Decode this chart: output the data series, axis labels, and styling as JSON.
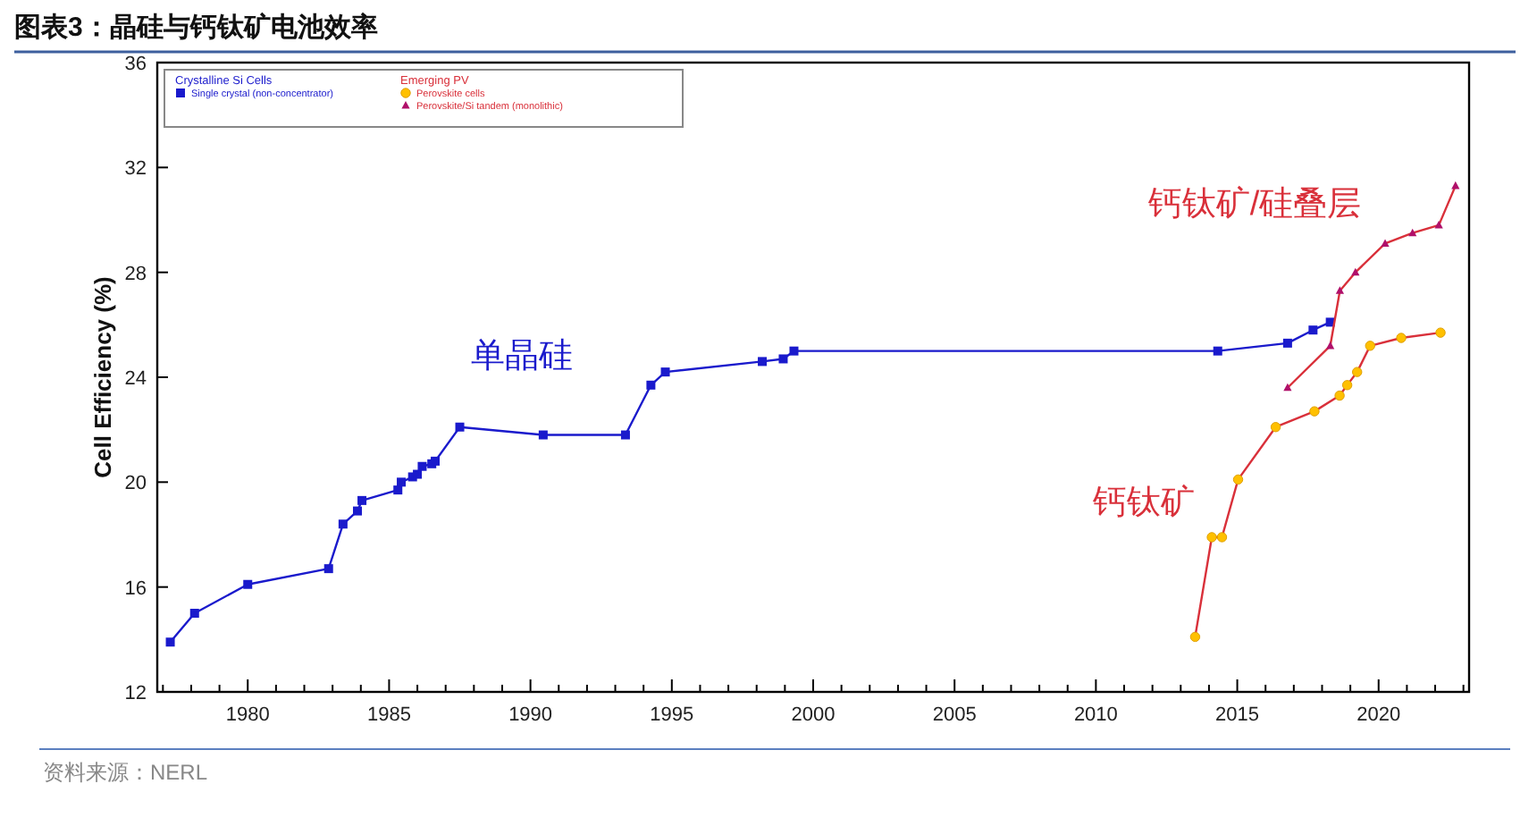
{
  "chart_data": {
    "type": "line",
    "title": "图表3：晶硅与钙钛矿电池效率",
    "ylabel": "Cell Efficiency (%)",
    "xlim": [
      1976.8,
      2023.2
    ],
    "ylim": [
      12,
      36
    ],
    "yticks": [
      12,
      16,
      20,
      24,
      28,
      32,
      36
    ],
    "xticks": [
      {
        "value": 1977,
        "label": null
      },
      {
        "value": 1978,
        "label": null
      },
      {
        "value": 1979,
        "label": null
      },
      1980,
      {
        "value": 1981,
        "label": null
      },
      {
        "value": 1982,
        "label": null
      },
      {
        "value": 1983,
        "label": null
      },
      {
        "value": 1984,
        "label": null
      },
      1985,
      {
        "value": 1986,
        "label": null
      },
      {
        "value": 1987,
        "label": null
      },
      {
        "value": 1988,
        "label": null
      },
      {
        "value": 1989,
        "label": null
      },
      1990,
      {
        "value": 1991,
        "label": null
      },
      {
        "value": 1992,
        "label": null
      },
      {
        "value": 1993,
        "label": null
      },
      {
        "value": 1994,
        "label": null
      },
      1995,
      {
        "value": 1996,
        "label": null
      },
      {
        "value": 1997,
        "label": null
      },
      {
        "value": 1998,
        "label": null
      },
      {
        "value": 1999,
        "label": null
      },
      2000,
      {
        "value": 2001,
        "label": null
      },
      {
        "value": 2002,
        "label": null
      },
      {
        "value": 2003,
        "label": null
      },
      {
        "value": 2004,
        "label": null
      },
      2005,
      {
        "value": 2006,
        "label": null
      },
      {
        "value": 2007,
        "label": null
      },
      {
        "value": 2008,
        "label": null
      },
      {
        "value": 2009,
        "label": null
      },
      2010,
      {
        "value": 2011,
        "label": null
      },
      {
        "value": 2012,
        "label": null
      },
      {
        "value": 2013,
        "label": null
      },
      {
        "value": 2014,
        "label": null
      },
      2015,
      {
        "value": 2016,
        "label": null
      },
      {
        "value": 2017,
        "label": null
      },
      {
        "value": 2018,
        "label": null
      },
      {
        "value": 2019,
        "label": null
      },
      2020,
      {
        "value": 2021,
        "label": null
      },
      {
        "value": 2022,
        "label": null
      },
      {
        "value": 2023,
        "label": null
      }
    ],
    "grid": false,
    "legend": "top left",
    "series": [
      {
        "name": "Single crystal (non-concentrator)",
        "color": "#1a1acc",
        "marker": "square",
        "x": [
          1977.26,
          1978.12,
          1980.0,
          1982.86,
          1983.37,
          1983.88,
          1984.04,
          1985.31,
          1985.43,
          1985.83,
          1986.0,
          1986.17,
          1986.51,
          1986.63,
          1987.5,
          1990.45,
          1993.36,
          1994.26,
          1994.77,
          1998.2,
          1998.94,
          1999.32,
          2014.31,
          2016.78,
          2017.68,
          2018.29
        ],
        "values": [
          13.9,
          15.0,
          16.1,
          16.7,
          18.4,
          18.9,
          19.3,
          19.7,
          20.0,
          20.2,
          20.3,
          20.6,
          20.7,
          20.8,
          22.1,
          21.8,
          21.8,
          23.7,
          24.2,
          24.6,
          24.7,
          25.0,
          25.0,
          25.3,
          25.8,
          26.1
        ]
      },
      {
        "name": "Perovskite cells",
        "color": "#d9303a",
        "marker": "circle",
        "colors": [
          "#ffc000",
          "#ffc000",
          "#ffc000",
          "#ffc000",
          "#ffc000",
          "#ffc000",
          "#ffc000",
          "#ffc000",
          "#ffc000",
          "#ffc000",
          "#ffc000",
          "#ffc000"
        ],
        "x": [
          2013.51,
          2014.1,
          2014.46,
          2015.03,
          2016.36,
          2017.73,
          2018.62,
          2018.89,
          2019.24,
          2019.7,
          2020.8,
          2022.19
        ],
        "values": [
          14.1,
          17.9,
          17.9,
          20.1,
          22.1,
          22.7,
          23.3,
          23.7,
          24.2,
          25.2,
          25.5,
          25.7
        ]
      },
      {
        "name": "Perovskite/Si tandem (monolithic)",
        "color": "#d9303a",
        "marker": "triangle",
        "colors": [
          "#b0106a",
          "#b0106a",
          "#b0106a",
          "#b0106a",
          "#b0106a",
          "#b0106a",
          "#b0106a",
          "#b0106a"
        ],
        "x": [
          2016.78,
          2018.29,
          2018.63,
          2019.18,
          2020.23,
          2021.2,
          2022.13,
          2022.72
        ],
        "values": [
          23.6,
          25.2,
          27.3,
          28.0,
          29.1,
          29.5,
          29.8,
          31.3
        ]
      }
    ],
    "annotations": [
      "Crystalline Si Cells",
      "Emerging PV",
      "单晶硅",
      "钙钛矿/硅叠层",
      "钙钛矿",
      "资料来源：NERL"
    ]
  }
}
